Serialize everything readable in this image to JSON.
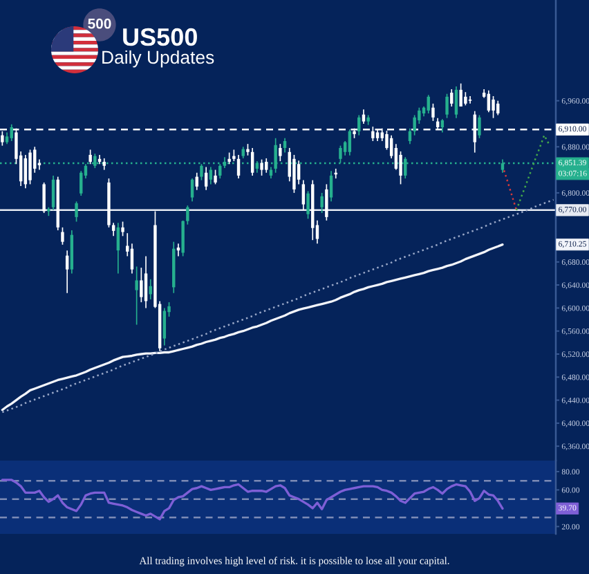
{
  "chart_data": [
    {
      "type": "candlestick",
      "title": "US500",
      "subtitle": "Daily Updates",
      "categories": [
        null,
        null,
        null,
        null,
        null,
        null,
        null,
        null,
        null,
        null,
        null,
        null,
        null,
        null,
        null,
        null,
        null,
        null,
        null,
        null,
        null,
        null,
        null,
        null,
        null,
        null,
        null,
        null,
        null,
        null,
        null,
        null,
        null,
        null,
        null,
        null,
        null,
        null,
        null,
        null,
        null,
        null,
        null,
        null,
        null,
        null,
        null,
        null,
        null,
        null,
        null,
        null,
        null,
        null,
        null,
        null,
        null,
        null,
        null,
        null,
        null,
        null,
        null,
        null,
        null,
        null,
        null,
        null,
        null,
        null,
        null,
        null,
        null,
        null,
        null,
        null,
        null,
        null,
        null,
        null,
        null,
        null,
        null,
        null,
        null,
        null,
        null,
        null,
        null,
        null,
        null,
        null,
        null,
        null,
        null,
        null,
        null,
        null,
        null,
        null,
        null,
        null,
        null,
        null,
        null,
        null,
        null,
        null,
        null,
        null,
        null,
        null,
        null,
        null,
        null,
        null,
        null,
        null,
        null,
        null
      ],
      "series": [
        {
          "ohlc": [
            [
              6900,
              6907,
              6882,
              6888
            ],
            [
              6888,
              6905,
              6885,
              6898
            ],
            [
              6895,
              6919,
              6890,
              6914
            ],
            [
              6905,
              6912,
              6850,
              6859
            ],
            [
              6865,
              6872,
              6812,
              6820
            ],
            [
              6860,
              6866,
              6808,
              6815
            ],
            [
              6870,
              6875,
              6815,
              6822
            ],
            [
              6875,
              6880,
              6835,
              6842
            ],
            [
              6852,
              6858,
              6840,
              6848
            ],
            [
              6815,
              6818,
              6765,
              6768
            ],
            [
              6768,
              6775,
              6760,
              6772
            ],
            [
              6775,
              6830,
              6770,
              6823
            ],
            [
              6823,
              6828,
              6735,
              6740
            ],
            [
              6732,
              6740,
              6710,
              6715
            ],
            [
              6691,
              6700,
              6626,
              6667
            ],
            [
              6667,
              6735,
              6660,
              6727
            ],
            [
              6758,
              6785,
              6750,
              6782
            ],
            [
              6799,
              6838,
              6795,
              6835
            ],
            [
              6830,
              6850,
              6825,
              6847
            ],
            [
              6866,
              6875,
              6850,
              6854
            ],
            [
              6847,
              6868,
              6843,
              6864
            ],
            [
              6859,
              6866,
              6850,
              6854
            ],
            [
              6854,
              6860,
              6840,
              6847
            ],
            [
              6818,
              6825,
              6740,
              6744
            ],
            [
              6744,
              6748,
              6725,
              6734
            ],
            [
              6700,
              6748,
              6660,
              6740
            ],
            [
              6740,
              6750,
              6725,
              6732
            ],
            [
              6708,
              6730,
              6690,
              6698
            ],
            [
              6703,
              6712,
              6660,
              6667
            ],
            [
              6631,
              6672,
              6571,
              6648
            ],
            [
              6648,
              6670,
              6610,
              6619
            ],
            [
              6660,
              6690,
              6600,
              6612
            ],
            [
              6624,
              6650,
              6615,
              6638
            ],
            [
              6744,
              6768,
              6600,
              6602
            ],
            [
              6607,
              6612,
              6525,
              6530
            ],
            [
              6547,
              6600,
              6535,
              6595
            ],
            [
              6593,
              6610,
              6585,
              6603
            ],
            [
              6636,
              6715,
              6626,
              6703
            ],
            [
              6705,
              6712,
              6690,
              6700
            ],
            [
              6696,
              6752,
              6690,
              6751
            ],
            [
              6751,
              6778,
              6745,
              6775
            ],
            [
              6792,
              6825,
              6785,
              6823
            ],
            [
              6828,
              6835,
              6805,
              6811
            ],
            [
              6828,
              6850,
              6822,
              6847
            ],
            [
              6835,
              6845,
              6805,
              6811
            ],
            [
              6823,
              6845,
              6815,
              6840
            ],
            [
              6830,
              6840,
              6815,
              6818
            ],
            [
              6830,
              6850,
              6825,
              6847
            ],
            [
              6847,
              6862,
              6843,
              6854
            ],
            [
              6859,
              6870,
              6850,
              6854
            ],
            [
              6864,
              6875,
              6855,
              6859
            ],
            [
              6859,
              6866,
              6825,
              6830
            ],
            [
              6864,
              6880,
              6860,
              6876
            ],
            [
              6876,
              6885,
              6865,
              6871
            ],
            [
              6871,
              6878,
              6830,
              6835
            ],
            [
              6842,
              6855,
              6835,
              6852
            ],
            [
              6852,
              6858,
              6830,
              6840
            ],
            [
              6854,
              6860,
              6835,
              6840
            ],
            [
              6830,
              6845,
              6825,
              6840
            ],
            [
              6842,
              6895,
              6835,
              6883
            ],
            [
              6878,
              6885,
              6855,
              6864
            ],
            [
              6878,
              6895,
              6870,
              6890
            ],
            [
              6871,
              6878,
              6820,
              6828
            ],
            [
              6859,
              6866,
              6800,
              6806
            ],
            [
              6850,
              6856,
              6815,
              6823
            ],
            [
              6815,
              6822,
              6770,
              6780
            ],
            [
              6763,
              6803,
              6755,
              6799
            ],
            [
              6815,
              6822,
              6718,
              6739
            ],
            [
              6744,
              6752,
              6712,
              6720
            ],
            [
              6775,
              6800,
              6765,
              6794
            ],
            [
              6806,
              6815,
              6752,
              6758
            ],
            [
              6792,
              6838,
              6785,
              6830
            ],
            [
              6835,
              6842,
              6825,
              6832
            ],
            [
              6859,
              6882,
              6852,
              6878
            ],
            [
              6871,
              6890,
              6865,
              6888
            ],
            [
              6871,
              6910,
              6865,
              6907
            ],
            [
              6907,
              6912,
              6895,
              6902
            ],
            [
              6907,
              6935,
              6900,
              6931
            ],
            [
              6936,
              6945,
              6920,
              6924
            ],
            [
              6924,
              6935,
              6918,
              6931
            ],
            [
              6907,
              6915,
              6890,
              6895
            ],
            [
              6905,
              6910,
              6890,
              6895
            ],
            [
              6905,
              6912,
              6890,
              6895
            ],
            [
              6902,
              6908,
              6875,
              6878
            ],
            [
              6895,
              6900,
              6860,
              6864
            ],
            [
              6878,
              6885,
              6840,
              6842
            ],
            [
              6866,
              6872,
              6815,
              6830
            ],
            [
              6830,
              6862,
              6825,
              6859
            ],
            [
              6890,
              6912,
              6885,
              6907
            ],
            [
              6907,
              6935,
              6900,
              6931
            ],
            [
              6926,
              6948,
              6920,
              6943
            ],
            [
              6938,
              6950,
              6933,
              6948
            ],
            [
              6943,
              6970,
              6938,
              6967
            ],
            [
              6948,
              6955,
              6925,
              6931
            ],
            [
              6924,
              6930,
              6910,
              6914
            ],
            [
              6914,
              6928,
              6905,
              6926
            ],
            [
              6936,
              6972,
              6930,
              6967
            ],
            [
              6974,
              6980,
              6950,
              6955
            ],
            [
              6936,
              6985,
              6930,
              6979
            ],
            [
              6979,
              6990,
              6950,
              6950
            ],
            [
              6967,
              6975,
              6952,
              6955
            ],
            [
              6962,
              6968,
              6955,
              6960
            ],
            [
              6936,
              6942,
              6870,
              6888
            ],
            [
              6900,
              6935,
              6895,
              6931
            ],
            [
              6974,
              6980,
              6965,
              6967
            ],
            [
              6972,
              6978,
              6940,
              6943
            ],
            [
              6962,
              6968,
              6930,
              6943
            ],
            [
              6955,
              6960,
              6935,
              6938
            ],
            [
              6840,
              6858,
              6835,
              6851.39
            ],
            null,
            null,
            null,
            null,
            null,
            null,
            null,
            null,
            null,
            null,
            null
          ],
          "colors": [
            "#ffffff",
            "#26b08e",
            "#26b08e",
            "#ffffff",
            "#ffffff",
            "#ffffff",
            "#ffffff",
            "#ffffff",
            "#ffffff",
            "#ffffff",
            "#26b08e",
            "#26b08e",
            "#ffffff",
            "#ffffff",
            "#ffffff",
            "#26b08e",
            "#26b08e",
            "#26b08e",
            "#26b08e",
            "#ffffff",
            "#26b08e",
            "#ffffff",
            "#ffffff",
            "#ffffff",
            "#ffffff",
            "#26b08e",
            "#ffffff",
            "#ffffff",
            "#ffffff",
            "#26b08e",
            "#ffffff",
            "#ffffff",
            "#26b08e",
            "#ffffff",
            "#ffffff",
            "#26b08e",
            "#26b08e",
            "#26b08e",
            "#ffffff",
            "#26b08e",
            "#26b08e",
            "#26b08e",
            "#ffffff",
            "#26b08e",
            "#ffffff",
            "#26b08e",
            "#ffffff",
            "#26b08e",
            "#26b08e",
            "#ffffff",
            "#ffffff",
            "#ffffff",
            "#26b08e",
            "#ffffff",
            "#ffffff",
            "#26b08e",
            "#ffffff",
            "#ffffff",
            "#26b08e",
            "#26b08e",
            "#ffffff",
            "#26b08e",
            "#ffffff",
            "#ffffff",
            "#ffffff",
            "#ffffff",
            "#26b08e",
            "#ffffff",
            "#ffffff",
            "#26b08e",
            "#ffffff",
            "#26b08e",
            "#ffffff",
            "#26b08e",
            "#26b08e",
            "#26b08e",
            "#ffffff",
            "#26b08e",
            "#ffffff",
            "#26b08e",
            "#ffffff",
            "#ffffff",
            "#ffffff",
            "#ffffff",
            "#ffffff",
            "#ffffff",
            "#ffffff",
            "#26b08e",
            "#26b08e",
            "#26b08e",
            "#26b08e",
            "#26b08e",
            "#26b08e",
            "#ffffff",
            "#ffffff",
            "#26b08e",
            "#26b08e",
            "#ffffff",
            "#26b08e",
            "#ffffff",
            "#ffffff",
            "#ffffff",
            "#ffffff",
            "#26b08e",
            "#ffffff",
            "#ffffff",
            "#ffffff",
            "#ffffff",
            "#26b08e",
            null,
            null,
            null,
            null,
            null,
            null,
            null,
            null,
            null,
            null,
            null
          ]
        },
        {
          "type": "line",
          "color": "#f2f4fa",
          "line_style": "solid",
          "values": [
            6423,
            6429,
            6434,
            6440,
            6446,
            6451,
            6457,
            6460,
            6463,
            6466,
            6469,
            6472,
            6475,
            6477,
            6479,
            6481,
            6483,
            6486,
            6489,
            6493,
            6496,
            6499,
            6502,
            6505,
            6509,
            6512,
            6515,
            6516,
            6517,
            6519,
            6520,
            6521,
            6521,
            6522,
            6522,
            6523,
            6523,
            6525,
            6527,
            6529,
            6531,
            6533,
            6536,
            6538,
            6541,
            6543,
            6545,
            6548,
            6550,
            6553,
            6555,
            6558,
            6560,
            6563,
            6566,
            6568,
            6571,
            6574,
            6578,
            6581,
            6584,
            6587,
            6591,
            6594,
            6597,
            6599,
            6601,
            6603,
            6605,
            6607,
            6609,
            6611,
            6614,
            6618,
            6621,
            6624,
            6628,
            6631,
            6633,
            6636,
            6638,
            6640,
            6642,
            6645,
            6647,
            6649,
            6651,
            6653,
            6655,
            6657,
            6659,
            6661,
            6664,
            6666,
            6668,
            6670,
            6673,
            6675,
            6678,
            6681,
            6685,
            6688,
            6691,
            6694,
            6697,
            6701,
            6704,
            6707,
            6710.25,
            null,
            null,
            null,
            null,
            null,
            null,
            null,
            null,
            null,
            null,
            null
          ]
        },
        {
          "type": "line",
          "color": "#9aa8c8",
          "line_style": "dotted",
          "values": [
            6419,
            6422,
            6425,
            6428,
            6431,
            6435,
            6438,
            6441,
            6444,
            6447,
            6450,
            6453,
            6456,
            6459,
            6462,
            6466,
            6469,
            6472,
            6475,
            6478,
            6481,
            6484,
            6487,
            6490,
            6493,
            6497,
            6500,
            6503,
            6506,
            6509,
            6512,
            6515,
            6518,
            6521,
            6524,
            6528,
            6531,
            6534,
            6537,
            6540,
            6543,
            6546,
            6549,
            6552,
            6555,
            6559,
            6562,
            6565,
            6568,
            6571,
            6574,
            6577,
            6580,
            6583,
            6586,
            6590,
            6593,
            6596,
            6599,
            6602,
            6605,
            6608,
            6611,
            6614,
            6617,
            6621,
            6624,
            6627,
            6630,
            6633,
            6636,
            6639,
            6642,
            6645,
            6648,
            6652,
            6655,
            6658,
            6661,
            6664,
            6667,
            6670,
            6673,
            6676,
            6679,
            6683,
            6686,
            6689,
            6692,
            6695,
            6698,
            6701,
            6704,
            6707,
            6710,
            6714,
            6717,
            6720,
            6723,
            6726,
            6729,
            6732,
            6735,
            6738,
            6741,
            6745,
            6748,
            6751,
            6754,
            6757,
            6760,
            6763,
            6766,
            6769,
            6772,
            6776,
            6779,
            6782,
            6785,
            6788
          ]
        },
        {
          "type": "line",
          "color": "#d63a3a",
          "line_style": "dotted",
          "values": [
            null,
            null,
            null,
            null,
            null,
            null,
            null,
            null,
            null,
            null,
            null,
            null,
            null,
            null,
            null,
            null,
            null,
            null,
            null,
            null,
            null,
            null,
            null,
            null,
            null,
            null,
            null,
            null,
            null,
            null,
            null,
            null,
            null,
            null,
            null,
            null,
            null,
            null,
            null,
            null,
            null,
            null,
            null,
            null,
            null,
            null,
            null,
            null,
            null,
            null,
            null,
            null,
            null,
            null,
            null,
            null,
            null,
            null,
            null,
            null,
            null,
            null,
            null,
            null,
            null,
            null,
            null,
            null,
            null,
            null,
            null,
            null,
            null,
            null,
            null,
            null,
            null,
            null,
            null,
            null,
            null,
            null,
            null,
            null,
            null,
            null,
            null,
            null,
            null,
            null,
            null,
            null,
            null,
            null,
            null,
            null,
            null,
            null,
            null,
            null,
            null,
            null,
            null,
            null,
            null,
            null,
            null,
            null,
            6847,
            6822,
            6796,
            6770,
            null,
            null,
            null,
            null,
            null,
            null,
            null,
            null
          ]
        },
        {
          "type": "line",
          "color": "#43a84a",
          "line_style": "dotted",
          "values": [
            null,
            null,
            null,
            null,
            null,
            null,
            null,
            null,
            null,
            null,
            null,
            null,
            null,
            null,
            null,
            null,
            null,
            null,
            null,
            null,
            null,
            null,
            null,
            null,
            null,
            null,
            null,
            null,
            null,
            null,
            null,
            null,
            null,
            null,
            null,
            null,
            null,
            null,
            null,
            null,
            null,
            null,
            null,
            null,
            null,
            null,
            null,
            null,
            null,
            null,
            null,
            null,
            null,
            null,
            null,
            null,
            null,
            null,
            null,
            null,
            null,
            null,
            null,
            null,
            null,
            null,
            null,
            null,
            null,
            null,
            null,
            null,
            null,
            null,
            null,
            null,
            null,
            null,
            null,
            null,
            null,
            null,
            null,
            null,
            null,
            null,
            null,
            null,
            null,
            null,
            null,
            null,
            null,
            null,
            null,
            null,
            null,
            null,
            null,
            null,
            null,
            null,
            null,
            null,
            null,
            null,
            null,
            null,
            null,
            null,
            null,
            6770,
            6792,
            6813,
            6835,
            6857,
            6878,
            6900,
            6885,
            null
          ]
        }
      ],
      "ylim": [
        6335,
        7135
      ],
      "yticks": [
        {
          "value": 6360,
          "label": "6,360.00"
        },
        {
          "value": 6400,
          "label": "6,400.00"
        },
        {
          "value": 6440,
          "label": "6,440.00"
        },
        {
          "value": 6480,
          "label": "6,480.00"
        },
        {
          "value": 6520,
          "label": "6,520.00"
        },
        {
          "value": 6560,
          "label": "6,560.00"
        },
        {
          "value": 6600,
          "label": "6,600.00"
        },
        {
          "value": 6640,
          "label": "6,640.00"
        },
        {
          "value": 6680,
          "label": "6,680.00"
        },
        {
          "value": 6800,
          "label": "6,800.00"
        },
        {
          "value": 6880,
          "label": "6,880.00"
        },
        {
          "value": 6960,
          "label": "6,960.00"
        }
      ],
      "ref_lines": [
        {
          "axis": "y",
          "value": 6910,
          "label": "6,910.00",
          "color": "#ffffff",
          "line_style": "dashed"
        },
        {
          "axis": "y",
          "value": 6770,
          "label": "6,770.00",
          "color": "#e6eaf2",
          "line_style": "solid"
        },
        {
          "axis": "y",
          "value": 6851.39,
          "label": "6,851.39",
          "color": "#26b08e",
          "line_style": "dotted"
        }
      ],
      "annotations": [
        "500",
        {
          "text": "03:07:16",
          "y": 6851.39
        },
        {
          "text": "6,710.25",
          "y": 6710.25
        }
      ],
      "tick_labels": "y",
      "grid": false
    },
    {
      "type": "line",
      "categories": [
        null,
        null,
        null,
        null,
        null,
        null,
        null,
        null,
        null,
        null,
        null,
        null,
        null,
        null,
        null,
        null,
        null,
        null,
        null,
        null,
        null,
        null,
        null,
        null,
        null,
        null,
        null,
        null,
        null,
        null,
        null,
        null,
        null,
        null,
        null,
        null,
        null,
        null,
        null,
        null,
        null,
        null,
        null,
        null,
        null,
        null,
        null,
        null,
        null,
        null,
        null,
        null,
        null,
        null,
        null,
        null,
        null,
        null,
        null,
        null,
        null,
        null,
        null,
        null,
        null,
        null,
        null,
        null,
        null,
        null,
        null,
        null,
        null,
        null,
        null,
        null,
        null,
        null,
        null,
        null,
        null,
        null,
        null,
        null,
        null,
        null,
        null,
        null,
        null,
        null,
        null,
        null,
        null,
        null,
        null,
        null,
        null,
        null,
        null,
        null,
        null,
        null,
        null,
        null,
        null,
        null,
        null,
        null,
        null,
        null,
        null,
        null,
        null,
        null,
        null,
        null,
        null,
        null,
        null,
        null
      ],
      "series": [
        {
          "color": "#7e5fd6",
          "line_style": "solid",
          "values": [
            71,
            71,
            71,
            68,
            64,
            57,
            57,
            57,
            59,
            52,
            47,
            50,
            54,
            46,
            41,
            39,
            37,
            44,
            54,
            56,
            57,
            57,
            57,
            46,
            45,
            44,
            43,
            41,
            38,
            36,
            34,
            32,
            34,
            31,
            28,
            37,
            40,
            49,
            52,
            53,
            57,
            61,
            62,
            64,
            62,
            60,
            61,
            62,
            63,
            63,
            65,
            66,
            62,
            58,
            59,
            59,
            59,
            58,
            61,
            64,
            65,
            62,
            54,
            52,
            50,
            47,
            44,
            40,
            46,
            39,
            49,
            52,
            55,
            58,
            60,
            61,
            62,
            63,
            64,
            64,
            64,
            63,
            60,
            59,
            57,
            53,
            48,
            46,
            51,
            56,
            57,
            58,
            61,
            63,
            60,
            56,
            61,
            64,
            66,
            65,
            64,
            58,
            48,
            51,
            59,
            55,
            54,
            48,
            39.7,
            null,
            null,
            null,
            null,
            null,
            null,
            null,
            null,
            null,
            null,
            null
          ]
        }
      ],
      "ylim": [
        12,
        92
      ],
      "yticks": [
        {
          "value": 20,
          "label": "20.00"
        },
        {
          "value": 60,
          "label": "60.00"
        },
        {
          "value": 80,
          "label": "80.00"
        }
      ],
      "ref_lines": [
        {
          "axis": "y",
          "value": 70,
          "color": "#7d8bb5",
          "line_style": "dashed"
        },
        {
          "axis": "y",
          "value": 50,
          "color": "#7d8bb5",
          "line_style": "dashed"
        },
        {
          "axis": "y",
          "value": 30,
          "color": "#7d8bb5",
          "line_style": "dashed"
        }
      ],
      "annotations": [
        {
          "text": "39.70",
          "y": 39.7
        },
        "All trading involves high level of risk. it is possible to lose all your capital."
      ],
      "tick_labels": "y",
      "grid": false
    }
  ]
}
